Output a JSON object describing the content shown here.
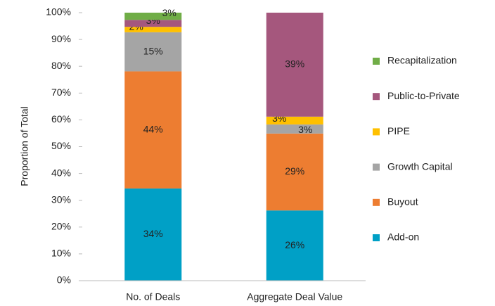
{
  "chart_data": {
    "type": "stacked_bar",
    "y_label": "Proportion of Total",
    "categories": [
      "No. of Deals",
      "Aggregate Deal Value"
    ],
    "series": [
      {
        "name": "Add-on",
        "color": "#00a0c6",
        "values": [
          34.4,
          26.2
        ],
        "value_labels": [
          "34%",
          "26%"
        ]
      },
      {
        "name": "Buyout",
        "color": "#ed7d31",
        "values": [
          43.7,
          28.7
        ],
        "value_labels": [
          "44%",
          "29%"
        ]
      },
      {
        "name": "Growth Capital",
        "color": "#a5a5a5",
        "values": [
          14.6,
          3.4
        ],
        "value_labels": [
          "15%",
          "3%"
        ]
      },
      {
        "name": "PIPE",
        "color": "#ffc000",
        "values": [
          2.0,
          2.9
        ],
        "value_labels": [
          "2%",
          "3%"
        ]
      },
      {
        "name": "Public-to-Private",
        "color": "#a5577d",
        "values": [
          2.6,
          38.8
        ],
        "value_labels": [
          "3%",
          "39%"
        ]
      },
      {
        "name": "Recapitalization",
        "color": "#70ad47",
        "values": [
          2.7,
          0
        ],
        "value_labels": [
          "3%",
          null
        ]
      }
    ],
    "ylim": [
      0,
      100
    ],
    "yticks": [
      {
        "value": 0,
        "label": "0%"
      },
      {
        "value": 10,
        "label": "10%"
      },
      {
        "value": 20,
        "label": "20%"
      },
      {
        "value": 30,
        "label": "30%"
      },
      {
        "value": 40,
        "label": "40%"
      },
      {
        "value": 50,
        "label": "50%"
      },
      {
        "value": 60,
        "label": "60%"
      },
      {
        "value": 70,
        "label": "70%"
      },
      {
        "value": 80,
        "label": "80%"
      },
      {
        "value": 90,
        "label": "90%"
      },
      {
        "value": 100,
        "label": "100%"
      }
    ],
    "legend": "right"
  }
}
